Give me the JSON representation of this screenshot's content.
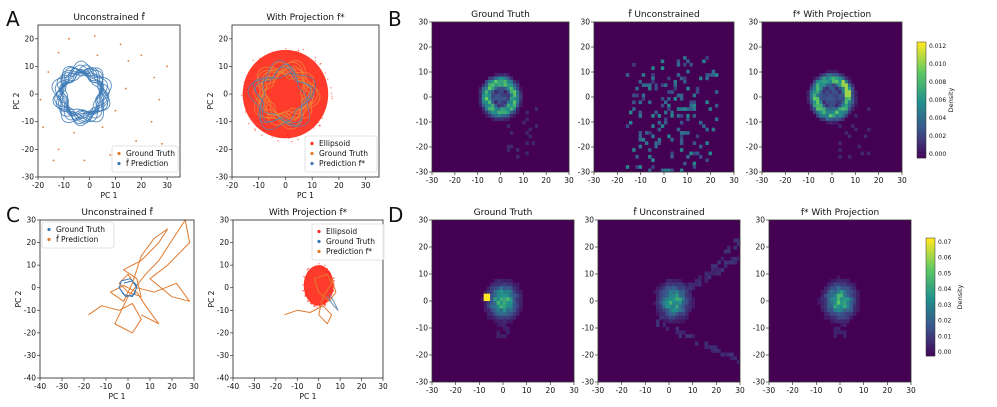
{
  "figure": {
    "panel_letters": [
      "A",
      "B",
      "C",
      "D"
    ]
  },
  "chart_data": [
    {
      "id": "A1",
      "type": "scatter",
      "title": "Unconstrained f̂",
      "xlabel": "PC 1",
      "ylabel": "PC 2",
      "xlim": [
        -20,
        35
      ],
      "ylim": [
        -30,
        25
      ],
      "xticks": [
        -20,
        -10,
        0,
        10,
        20,
        30
      ],
      "yticks": [
        -30,
        -20,
        -10,
        0,
        10,
        20
      ],
      "legend": [
        {
          "label": "Ground Truth",
          "color": "#e07a2e"
        },
        {
          "label": "f̂ Prediction",
          "color": "#3a78b5"
        }
      ],
      "series": [
        {
          "name": "Ground Truth",
          "style": "dots",
          "color": "#e07a2e",
          "points": [
            [
              -8,
              20
            ],
            [
              2,
              21
            ],
            [
              12,
              18
            ],
            [
              20,
              14
            ],
            [
              25,
              6
            ],
            [
              27,
              -2
            ],
            [
              24,
              -10
            ],
            [
              18,
              -17
            ],
            [
              8,
              -22
            ],
            [
              -2,
              -24
            ],
            [
              -12,
              -20
            ],
            [
              -18,
              -12
            ],
            [
              -19,
              -2
            ],
            [
              -16,
              8
            ],
            [
              -12,
              15
            ],
            [
              5,
              -12
            ],
            [
              10,
              -6
            ],
            [
              14,
              2
            ],
            [
              30,
              10
            ],
            [
              28,
              -18
            ],
            [
              -6,
              -14
            ],
            [
              15,
              12
            ],
            [
              -14,
              -24
            ],
            [
              22,
              -24
            ],
            [
              3,
              14
            ]
          ]
        },
        {
          "name": "f̂ Prediction",
          "style": "rings",
          "color": "#3a78b5",
          "center": [
            -3,
            0
          ],
          "radius": [
            6.5,
            10
          ],
          "count": 14
        }
      ]
    },
    {
      "id": "A2",
      "type": "scatter",
      "title": "With Projection f*",
      "xlabel": "PC 1",
      "ylabel": "PC 2",
      "xlim": [
        -20,
        35
      ],
      "ylim": [
        -30,
        25
      ],
      "xticks": [
        -20,
        -10,
        0,
        10,
        20,
        30
      ],
      "yticks": [
        -30,
        -20,
        -10,
        0,
        10,
        20
      ],
      "legend": [
        {
          "label": "Ellipsoid",
          "color": "#ff2a1a"
        },
        {
          "label": "Ground Truth",
          "color": "#e07a2e"
        },
        {
          "label": "Prediction f*",
          "color": "#3a78b5"
        }
      ],
      "series": [
        {
          "name": "Ellipsoid",
          "style": "cloud",
          "color": "#ff2a1a",
          "center": [
            0,
            0
          ],
          "radius": [
            16,
            16
          ]
        },
        {
          "name": "Ground Truth",
          "style": "rings",
          "color": "#e8883a",
          "center": [
            0,
            0
          ],
          "radius": [
            7,
            11
          ],
          "count": 10
        },
        {
          "name": "Prediction f*",
          "style": "rings",
          "color": "#5a7fa8",
          "center": [
            -1,
            -1
          ],
          "radius": [
            8,
            11
          ],
          "count": 4
        }
      ]
    },
    {
      "id": "B1",
      "type": "heatmap",
      "title": "Ground Truth",
      "xlim": [
        -30,
        30
      ],
      "ylim": [
        -30,
        30
      ],
      "xticks": [
        -30,
        -20,
        -10,
        0,
        10,
        20,
        30
      ],
      "yticks": [
        -30,
        -20,
        -10,
        0,
        10,
        20,
        30
      ],
      "pattern": "ring",
      "center": [
        0,
        0
      ],
      "radius": 6
    },
    {
      "id": "B2",
      "type": "heatmap",
      "title": "f̂ Unconstrained",
      "xlim": [
        -30,
        30
      ],
      "ylim": [
        -30,
        30
      ],
      "xticks": [
        -30,
        -20,
        -10,
        0,
        10,
        20,
        30
      ],
      "yticks": [
        -30,
        -20,
        -10,
        0,
        10,
        20,
        30
      ],
      "pattern": "scatter",
      "center": [
        3,
        -8
      ],
      "radius": 20
    },
    {
      "id": "B3",
      "type": "heatmap",
      "title": "f* With Projection",
      "xlim": [
        -30,
        30
      ],
      "ylim": [
        -30,
        30
      ],
      "xticks": [
        -30,
        -20,
        -10,
        0,
        10,
        20,
        30
      ],
      "yticks": [
        -30,
        -20,
        -10,
        0,
        10,
        20,
        30
      ],
      "pattern": "ring",
      "center": [
        0,
        0
      ],
      "radius": 7
    },
    {
      "id": "B-colorbar",
      "type": "colorbar",
      "label": "Density",
      "ticks": [
        "0.012",
        "0.010",
        "0.008",
        "0.006",
        "0.004",
        "0.002",
        "0.000"
      ]
    },
    {
      "id": "C1",
      "type": "line",
      "title": "Unconstrained f̂",
      "xlabel": "PC 1",
      "ylabel": "PC 2",
      "xlim": [
        -40,
        30
      ],
      "ylim": [
        -40,
        30
      ],
      "xticks": [
        -40,
        -30,
        -20,
        -10,
        0,
        10,
        20,
        30
      ],
      "yticks": [
        -40,
        -30,
        -20,
        -10,
        0,
        10,
        20,
        30
      ],
      "legend": [
        {
          "label": "Ground Truth",
          "color": "#3a78b5"
        },
        {
          "label": "f̂ Prediction",
          "color": "#e07a2e"
        }
      ],
      "series": [
        {
          "name": "Prediction",
          "color": "#e07a2e",
          "points": [
            [
              -18,
              -12
            ],
            [
              -12,
              -8
            ],
            [
              -4,
              -10
            ],
            [
              2,
              -7
            ],
            [
              6,
              -14
            ],
            [
              2,
              -20
            ],
            [
              -6,
              -16
            ],
            [
              0,
              -4
            ],
            [
              8,
              6
            ],
            [
              14,
              12
            ],
            [
              22,
              24
            ],
            [
              26,
              30
            ],
            [
              28,
              20
            ],
            [
              18,
              10
            ],
            [
              10,
              4
            ],
            [
              20,
              -4
            ],
            [
              28,
              -6
            ],
            [
              22,
              2
            ],
            [
              12,
              -2
            ],
            [
              4,
              0
            ],
            [
              0,
              6
            ],
            [
              -4,
              2
            ],
            [
              0,
              -2
            ],
            [
              6,
              -4
            ],
            [
              4,
              4
            ],
            [
              -2,
              8
            ],
            [
              6,
              12
            ],
            [
              14,
              20
            ],
            [
              18,
              26
            ],
            [
              12,
              22
            ],
            [
              6,
              14
            ],
            [
              2,
              2
            ],
            [
              -2,
              -6
            ],
            [
              -8,
              -2
            ],
            [
              -2,
              1
            ],
            [
              4,
              -2
            ],
            [
              8,
              -8
            ],
            [
              14,
              -16
            ],
            [
              6,
              -12
            ]
          ]
        },
        {
          "name": "Ground Truth",
          "color": "#3a78b5",
          "points": [
            [
              -4,
              0
            ],
            [
              -1,
              -4
            ],
            [
              3,
              -3
            ],
            [
              4,
              1
            ],
            [
              1,
              4
            ],
            [
              -3,
              3
            ],
            [
              -4,
              0
            ],
            [
              -2,
              -3
            ],
            [
              2,
              -4
            ],
            [
              4,
              0
            ],
            [
              2,
              3
            ],
            [
              -2,
              2
            ]
          ]
        }
      ]
    },
    {
      "id": "C2",
      "type": "scatter",
      "title": "With Projection f*",
      "xlabel": "PC 1",
      "ylabel": "PC 2",
      "xlim": [
        -40,
        30
      ],
      "ylim": [
        -40,
        30
      ],
      "xticks": [
        -40,
        -30,
        -20,
        -10,
        0,
        10,
        20,
        30
      ],
      "yticks": [
        -40,
        -30,
        -20,
        -10,
        0,
        10,
        20,
        30
      ],
      "legend": [
        {
          "label": "Ellipsoid",
          "color": "#ff2a1a"
        },
        {
          "label": "Ground Truth",
          "color": "#3a78b5"
        },
        {
          "label": "Prediction f*",
          "color": "#e07a2e"
        }
      ],
      "series": [
        {
          "name": "Ellipsoid",
          "style": "cloud",
          "color": "#ff2a1a",
          "center": [
            0,
            1
          ],
          "radius": [
            7,
            9
          ]
        },
        {
          "name": "Prediction f*",
          "style": "line",
          "color": "#e07a2e",
          "points": [
            [
              -16,
              -12
            ],
            [
              -10,
              -10
            ],
            [
              -4,
              -11
            ],
            [
              2,
              -8
            ],
            [
              6,
              -12
            ],
            [
              4,
              -16
            ],
            [
              0,
              -12
            ],
            [
              2,
              -4
            ],
            [
              6,
              2
            ],
            [
              4,
              6
            ],
            [
              -2,
              4
            ],
            [
              0,
              -2
            ],
            [
              5,
              -6
            ],
            [
              8,
              -2
            ],
            [
              6,
              4
            ]
          ]
        },
        {
          "name": "Ground Truth",
          "style": "line",
          "color": "#6f8fb0",
          "points": [
            [
              4,
              -4
            ],
            [
              7,
              -8
            ],
            [
              9,
              -10
            ],
            [
              7,
              -6
            ],
            [
              5,
              -3
            ]
          ]
        }
      ]
    },
    {
      "id": "D1",
      "type": "heatmap",
      "title": "Ground Truth",
      "xlim": [
        -30,
        30
      ],
      "ylim": [
        -30,
        30
      ],
      "xticks": [
        -30,
        -20,
        -10,
        0,
        10,
        20,
        30
      ],
      "yticks": [
        -30,
        -20,
        -10,
        0,
        10,
        20,
        30
      ],
      "pattern": "blob",
      "center": [
        0,
        0
      ],
      "radius": 4
    },
    {
      "id": "D2",
      "type": "heatmap",
      "title": "f̂ Unconstrained",
      "xlim": [
        -30,
        30
      ],
      "ylim": [
        -30,
        30
      ],
      "xticks": [
        -30,
        -20,
        -10,
        0,
        10,
        20,
        30
      ],
      "yticks": [
        -30,
        -20,
        -10,
        0,
        10,
        20,
        30
      ],
      "pattern": "trails",
      "center": [
        2,
        0
      ],
      "radius": 4
    },
    {
      "id": "D3",
      "type": "heatmap",
      "title": "f* With Projection",
      "xlim": [
        -30,
        30
      ],
      "ylim": [
        -30,
        30
      ],
      "xticks": [
        -30,
        -20,
        -10,
        0,
        10,
        20,
        30
      ],
      "yticks": [
        -30,
        -20,
        -10,
        0,
        10,
        20,
        30
      ],
      "pattern": "blob",
      "center": [
        0,
        0
      ],
      "radius": 4
    },
    {
      "id": "D-colorbar",
      "type": "colorbar",
      "label": "Density",
      "ticks": [
        "0.07",
        "0.06",
        "0.05",
        "0.04",
        "0.03",
        "0.02",
        "0.01",
        "0.00"
      ]
    }
  ]
}
